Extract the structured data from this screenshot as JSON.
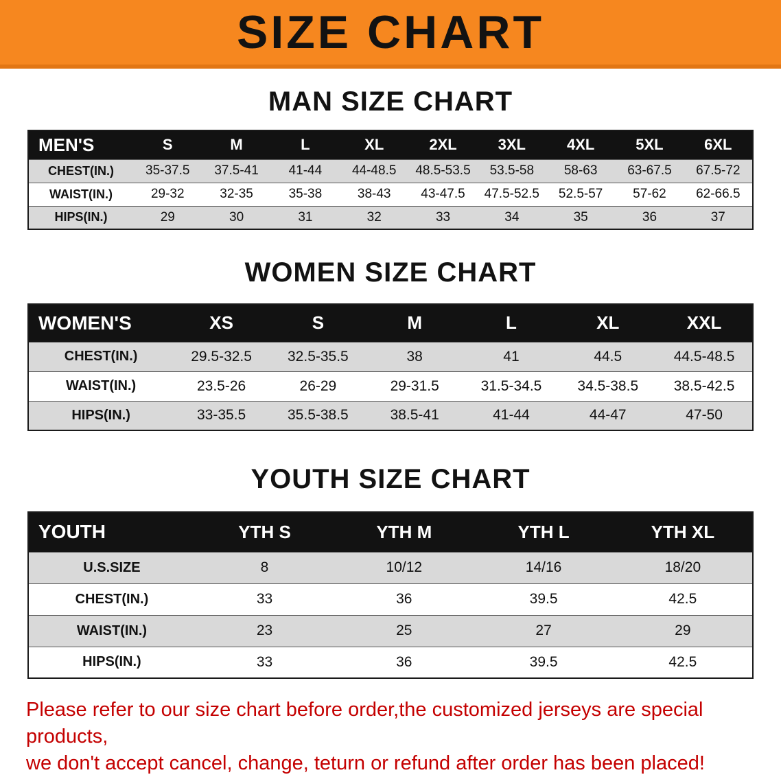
{
  "banner": {
    "title": "SIZE CHART",
    "bg_color": "#F6871F",
    "text_color": "#121212"
  },
  "sections": [
    {
      "id": "men",
      "heading": "MAN SIZE CHART",
      "table": {
        "title": "MEN'S",
        "columns": [
          "S",
          "M",
          "L",
          "XL",
          "2XL",
          "3XL",
          "4XL",
          "5XL",
          "6XL"
        ],
        "rows": [
          {
            "label": "CHEST(IN.)",
            "values": [
              "35-37.5",
              "37.5-41",
              "41-44",
              "44-48.5",
              "48.5-53.5",
              "53.5-58",
              "58-63",
              "63-67.5",
              "67.5-72"
            ]
          },
          {
            "label": "WAIST(IN.)",
            "values": [
              "29-32",
              "32-35",
              "35-38",
              "38-43",
              "43-47.5",
              "47.5-52.5",
              "52.5-57",
              "57-62",
              "62-66.5"
            ]
          },
          {
            "label": "HIPS(IN.)",
            "values": [
              "29",
              "30",
              "31",
              "32",
              "33",
              "34",
              "35",
              "36",
              "37"
            ]
          }
        ]
      }
    },
    {
      "id": "women",
      "heading": "WOMEN SIZE CHART",
      "table": {
        "title": "WOMEN'S",
        "columns": [
          "XS",
          "S",
          "M",
          "L",
          "XL",
          "XXL"
        ],
        "rows": [
          {
            "label": "CHEST(IN.)",
            "values": [
              "29.5-32.5",
              "32.5-35.5",
              "38",
              "41",
              "44.5",
              "44.5-48.5"
            ]
          },
          {
            "label": "WAIST(IN.)",
            "values": [
              "23.5-26",
              "26-29",
              "29-31.5",
              "31.5-34.5",
              "34.5-38.5",
              "38.5-42.5"
            ]
          },
          {
            "label": "HIPS(IN.)",
            "values": [
              "33-35.5",
              "35.5-38.5",
              "38.5-41",
              "41-44",
              "44-47",
              "47-50"
            ]
          }
        ]
      }
    },
    {
      "id": "youth",
      "heading": "YOUTH SIZE CHART",
      "table": {
        "title": "YOUTH",
        "columns": [
          "YTH S",
          "YTH M",
          "YTH L",
          "YTH XL"
        ],
        "rows": [
          {
            "label": "U.S.SIZE",
            "values": [
              "8",
              "10/12",
              "14/16",
              "18/20"
            ]
          },
          {
            "label": "CHEST(IN.)",
            "values": [
              "33",
              "36",
              "39.5",
              "42.5"
            ]
          },
          {
            "label": "WAIST(IN.)",
            "values": [
              "23",
              "25",
              "27",
              "29"
            ]
          },
          {
            "label": "HIPS(IN.)",
            "values": [
              "33",
              "36",
              "39.5",
              "42.5"
            ]
          }
        ]
      }
    }
  ],
  "footer": {
    "line1": "Please refer to our size chart before order,the customized jerseys are special products,",
    "line2": "we don't accept cancel, change, teturn or refund after order has been placed!"
  },
  "colors": {
    "banner_orange": "#F6871F",
    "header_black": "#121212",
    "stripe_gray": "#D9D9D9",
    "notice_red": "#C40000"
  }
}
